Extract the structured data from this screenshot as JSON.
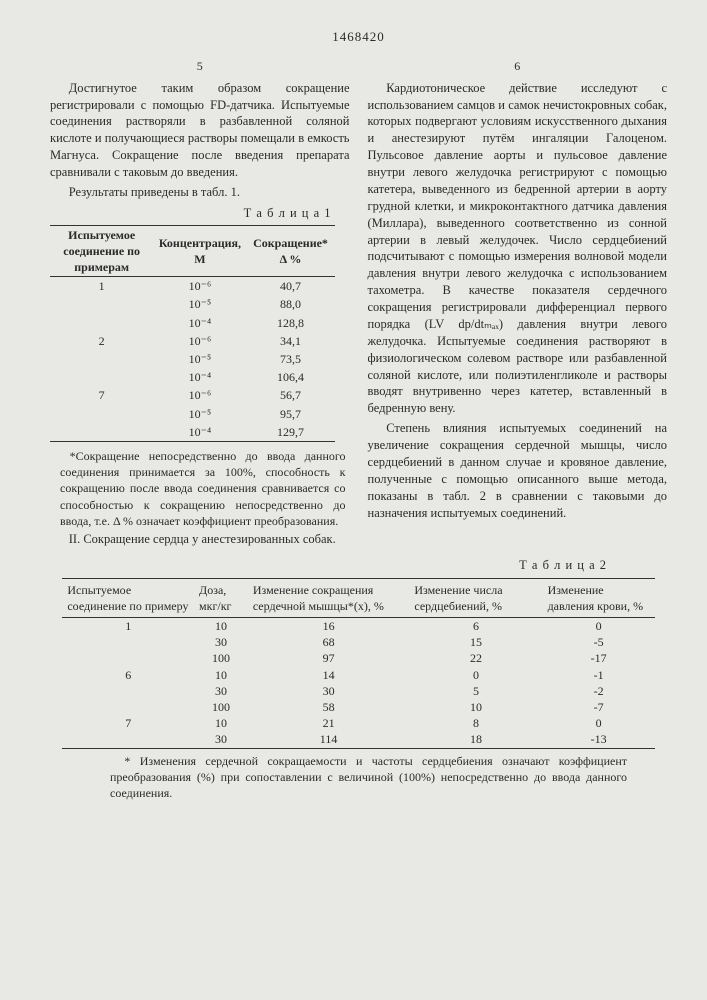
{
  "doc_number": "1468420",
  "left_page": "5",
  "right_page": "6",
  "left_col": {
    "p1": "Достигнутое таким образом сокращение регистрировали с помощью FD-датчика. Испытуемые соединения растворяли в разбавленной соляной кислоте и получающиеся растворы помещали в емкость Магнуса. Сокращение после введения препарата сравнивали с таковым до введения.",
    "p2": "Результаты приведены в табл. 1.",
    "table1_label": "Т а б л и ц а  1",
    "t1": {
      "head": [
        "Испытуемое соединение по примерам",
        "Концентрация, М",
        "Сокращение* Δ %"
      ],
      "rows": [
        [
          "1",
          "10⁻⁶",
          "40,7"
        ],
        [
          "",
          "10⁻⁵",
          "88,0"
        ],
        [
          "",
          "10⁻⁴",
          "128,8"
        ],
        [
          "2",
          "10⁻⁶",
          "34,1"
        ],
        [
          "",
          "10⁻⁵",
          "73,5"
        ],
        [
          "",
          "10⁻⁴",
          "106,4"
        ],
        [
          "7",
          "10⁻⁶",
          "56,7"
        ],
        [
          "",
          "10⁻⁵",
          "95,7"
        ],
        [
          "",
          "10⁻⁴",
          "129,7"
        ]
      ]
    },
    "foot1": "*Сокращение непосредственно до ввода данного соединения принимается за 100%, способность к сокращению после ввода соединения сравнивается со способностью к сокращению непосредственно до ввода, т.е. Δ % означает коэффициент преобразования.",
    "sec2": "II. Сокращение сердца у анестезированных собак."
  },
  "right_col": {
    "p1": "Кардиотоническое действие исследуют с использованием самцов и самок нечистокровных собак, которых подвергают условиям искусственного дыхания и анестезируют путём ингаляции Галоценом. Пульсовое давление аорты и пульсовое давление внутри левого желудочка регистрируют с помощью катетера, выведенного из бедренной артерии в аорту грудной клетки, и микроконтактного датчика давления (Миллара), выведенного соответственно из сонной артерии в левый желудочек. Число сердцебиений подсчитывают с помощью измерения волновой модели давления внутри левого желудочка с использованием тахометра. В качестве показателя сердечного сокращения регистрировали дифференциал первого порядка (LV dp/dtₘₐₓ) давления внутри левого желудочка. Испытуемые соединения растворяют в физиологическом солевом растворе или разбавленной соляной кислоте, или полиэтиленгликоле и растворы вводят внутривенно через катетер, вставленный в бедренную вену.",
    "p2": "Степень влияния испытуемых соединений на увеличение сокращения сердечной мышцы, число сердцебиений в данном случае и кровяное давление, полученные с помощью описанного выше метода, показаны в табл. 2 в сравнении с таковыми до назначения испытуемых соединений."
  },
  "table2_label": "Т а б л и ц а  2",
  "t2": {
    "head": [
      "Испытуемое соединение по примеру",
      "Доза, мкг/кг",
      "Изменение сокращения сердечной мышцы*(х), %",
      "Изменение числа сердцебиений, %",
      "Изменение давления крови, %"
    ],
    "rows": [
      [
        "1",
        "10",
        "16",
        "6",
        "0"
      ],
      [
        "",
        "30",
        "68",
        "15",
        "-5"
      ],
      [
        "",
        "100",
        "97",
        "22",
        "-17"
      ],
      [
        "6",
        "10",
        "14",
        "0",
        "-1"
      ],
      [
        "",
        "30",
        "30",
        "5",
        "-2"
      ],
      [
        "",
        "100",
        "58",
        "10",
        "-7"
      ],
      [
        "7",
        "10",
        "21",
        "8",
        "0"
      ],
      [
        "",
        "30",
        "114",
        "18",
        "-13"
      ]
    ]
  },
  "foot2": "* Изменения сердечной сокращаемости и частоты сердцебиения означают коэффициент преобразования (%) при сопоставлении с величиной (100%) непосредственно до ввода данного соединения."
}
